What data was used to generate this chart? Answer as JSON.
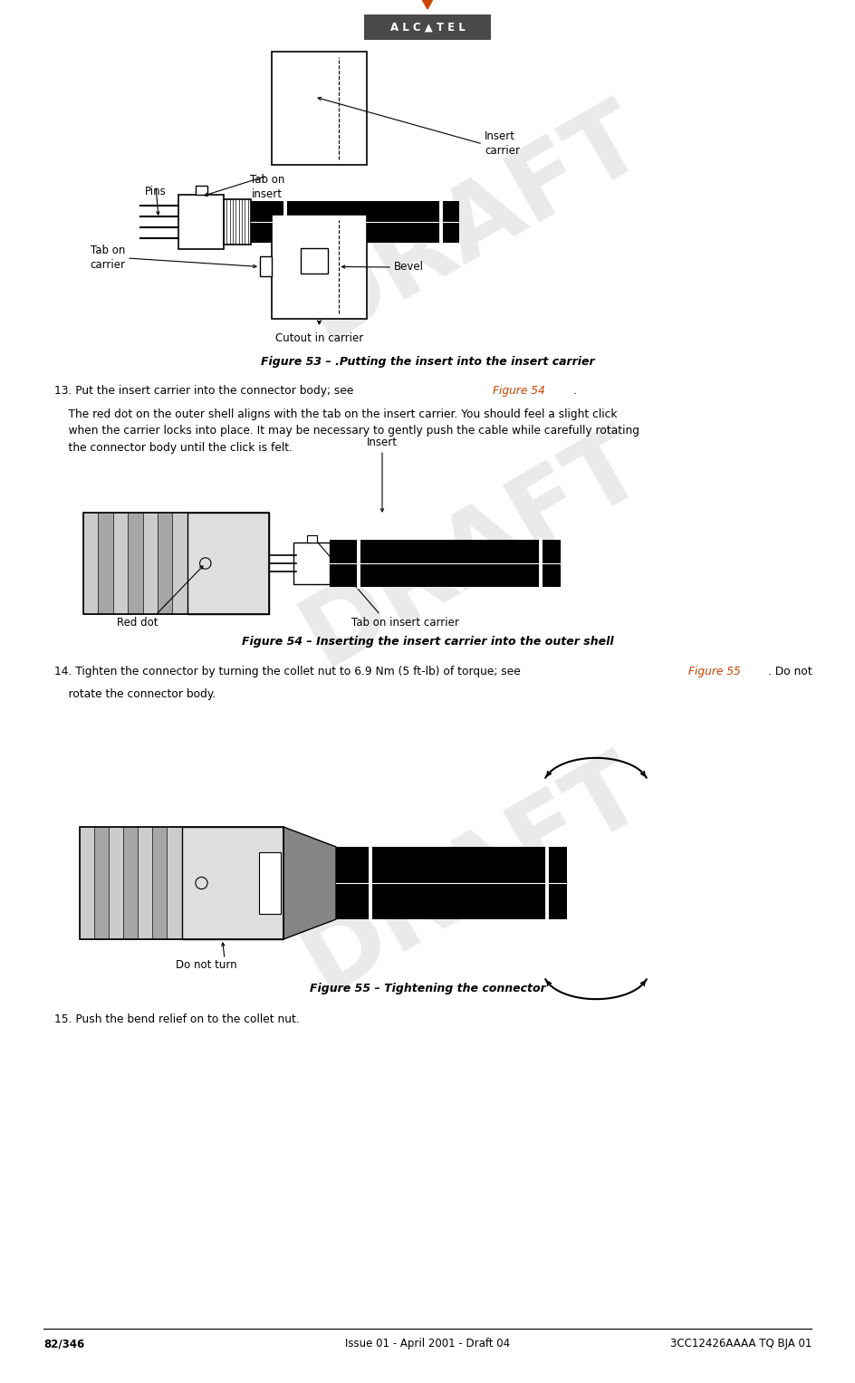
{
  "page_width": 9.44,
  "page_height": 15.27,
  "bg_color": "#ffffff",
  "alcatel_bg": "#4a4a4a",
  "alcatel_text": "#ffffff",
  "orange_color": "#cc4400",
  "black": "#000000",
  "footer_text_left": "82/346",
  "footer_text_center": "Issue 01 - April 2001 - Draft 04",
  "footer_text_right": "3CC12426AAAA TQ BJA 01",
  "fig53_caption": "Figure 53 – .Putting the insert into the insert carrier",
  "fig54_caption": "Figure 54 – Inserting the insert carrier into the outer shell",
  "fig55_caption": "Figure 55 – Tightening the connector",
  "para15_text": "15. Push the bend relief on to the collet nut.",
  "draft_text": "DRAFT",
  "draft_color": "#c8c8c8",
  "draft_alpha": 0.38
}
